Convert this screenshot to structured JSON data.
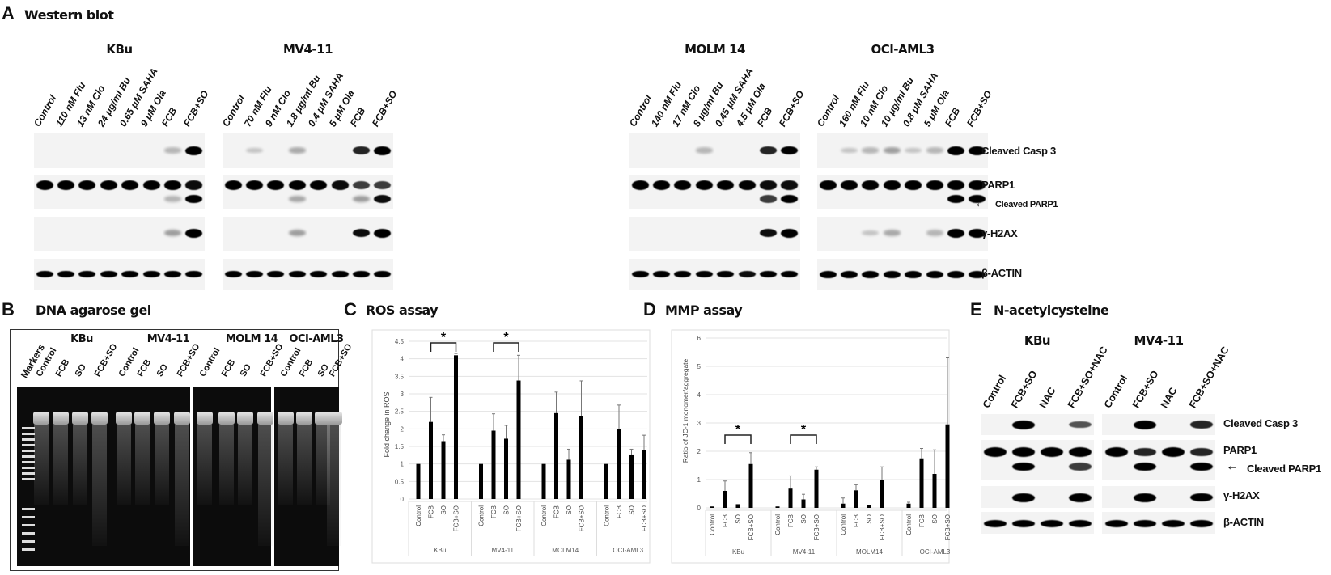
{
  "panelA": {
    "label": "A",
    "title": "Western blot",
    "blots": [
      {
        "cell": "KBu",
        "lanes": [
          "Control",
          "110 nM Flu",
          "13 nM Clo",
          "24 μg/ml Bu",
          "0.65 μM SAHA",
          "9 μM Ola",
          "FCB",
          "FCB+SO"
        ],
        "bands": {
          "casp3": [
            0,
            0,
            0,
            0,
            0,
            0,
            0.1,
            1
          ],
          "parp1": [
            1,
            1,
            1,
            1,
            1,
            1,
            0.9,
            0.8
          ],
          "cleaved_parp1": [
            0,
            0,
            0,
            0,
            0,
            0,
            0.1,
            0.9
          ],
          "h2ax": [
            0,
            0,
            0,
            0,
            0,
            0,
            0.2,
            1
          ],
          "actin": [
            0.9,
            0.9,
            0.9,
            0.9,
            0.9,
            0.9,
            0.9,
            0.9
          ]
        }
      },
      {
        "cell": "MV4-11",
        "lanes": [
          "Control",
          "70 nM Flu",
          "9 nM Clo",
          "1.8 μg/ml Bu",
          "0.4 μM SAHA",
          "5 μM Ola",
          "FCB",
          "FCB+SO"
        ],
        "bands": {
          "casp3": [
            0,
            0.05,
            0,
            0.15,
            0,
            0,
            0.7,
            1
          ],
          "parp1": [
            1,
            1,
            1,
            1,
            1,
            0.8,
            0.6,
            0.6
          ],
          "cleaved_parp1": [
            0,
            0,
            0,
            0.15,
            0,
            0,
            0.2,
            0.8
          ],
          "h2ax": [
            0,
            0,
            0,
            0.2,
            0,
            0,
            0.8,
            1
          ],
          "actin": [
            0.9,
            0.9,
            0.9,
            0.9,
            0.9,
            0.9,
            0.9,
            0.9
          ]
        }
      },
      {
        "cell": "MOLM 14",
        "lanes": [
          "Control",
          "140 nM Flu",
          "17 nM Clo",
          "8 μg/ml Bu",
          "0.45 μM SAHA",
          "4.5 μM Ola",
          "FCB",
          "FCB+SO"
        ],
        "bands": {
          "casp3": [
            0,
            0,
            0,
            0.1,
            0,
            0,
            0.7,
            0.9
          ],
          "parp1": [
            1,
            1,
            1,
            1,
            1,
            0.9,
            0.8,
            0.8
          ],
          "cleaved_parp1": [
            0,
            0,
            0,
            0,
            0,
            0,
            0.6,
            0.9
          ],
          "h2ax": [
            0,
            0,
            0,
            0,
            0,
            0,
            0.8,
            1
          ],
          "actin": [
            0.9,
            0.9,
            0.9,
            0.9,
            0.9,
            0.8,
            0.9,
            0.9
          ]
        }
      },
      {
        "cell": "OCI-AML3",
        "lanes": [
          "Control",
          "160 nM Flu",
          "10 nM Clo",
          "10 μg/ml Bu",
          "0.8 μM SAHA",
          "5 μM Ola",
          "FCB",
          "FCB+SO"
        ],
        "bands": {
          "casp3": [
            0,
            0.05,
            0.1,
            0.2,
            0.05,
            0.1,
            1,
            1
          ],
          "parp1": [
            0.9,
            0.9,
            0.9,
            0.9,
            0.9,
            0.9,
            0.9,
            0.9
          ],
          "cleaved_parp1": [
            0,
            0,
            0,
            0,
            0,
            0,
            0.85,
            0.9
          ],
          "h2ax": [
            0,
            0,
            0.05,
            0.15,
            0,
            0.1,
            1,
            1
          ],
          "actin": [
            1,
            1,
            1,
            1,
            1,
            1,
            1,
            1
          ]
        }
      }
    ],
    "row_labels": {
      "casp3": "Cleaved Casp 3",
      "parp1": "PARP1",
      "cleaved_parp1": "Cleaved PARP1",
      "h2ax": "γ-H2AX",
      "actin": "β-ACTIN"
    }
  },
  "panelB": {
    "label": "B",
    "title": "DNA agarose gel",
    "markers_label": "Markers",
    "groups": [
      {
        "cell": "KBu",
        "lanes": [
          "Control",
          "FCB",
          "SO",
          "FCB+SO"
        ]
      },
      {
        "cell": "MV4-11",
        "lanes": [
          "Control",
          "FCB",
          "SO",
          "FCB+SO"
        ]
      },
      {
        "cell": "MOLM 14",
        "lanes": [
          "Control",
          "FCB",
          "SO",
          "FCB+SO"
        ]
      },
      {
        "cell": "OCI-AML3",
        "lanes": [
          "Control",
          "FCB",
          "SO",
          "FCB+SO"
        ]
      }
    ]
  },
  "panelC": {
    "label": "C",
    "title": "ROS assay"
  },
  "panelD": {
    "label": "D",
    "title": "MMP assay"
  },
  "panelE": {
    "label": "E",
    "title": "N-acetylcysteine",
    "blots": [
      {
        "cell": "KBu",
        "lanes": [
          "Control",
          "FCB+SO",
          "NAC",
          "FCB+SO+NAC"
        ],
        "bands": {
          "casp3": [
            0,
            1,
            0,
            0.5
          ],
          "parp1": [
            1,
            1,
            1,
            1
          ],
          "cleaved_parp1": [
            0,
            0.9,
            0,
            0.6
          ],
          "h2ax": [
            0,
            1,
            0,
            1
          ],
          "actin": [
            1,
            1,
            1,
            1
          ]
        }
      },
      {
        "cell": "MV4-11",
        "lanes": [
          "Control",
          "FCB+SO",
          "NAC",
          "FCB+SO+NAC"
        ],
        "bands": {
          "casp3": [
            0,
            1,
            0,
            0.7
          ],
          "parp1": [
            1,
            0.7,
            1,
            0.7
          ],
          "cleaved_parp1": [
            0,
            0.9,
            0,
            0.9
          ],
          "h2ax": [
            0,
            1,
            0,
            0.9
          ],
          "actin": [
            1,
            1,
            1,
            1
          ]
        }
      }
    ],
    "row_labels": {
      "casp3": "Cleaved Casp 3",
      "parp1": "PARP1",
      "cleaved_parp1": "Cleaved PARP1",
      "h2ax": "γ-H2AX",
      "actin": "β-ACTIN"
    }
  },
  "chart_data": [
    {
      "type": "bar",
      "title": "ROS assay",
      "ylabel": "Fold change in ROS",
      "ylim": [
        0,
        4.5
      ],
      "yticks": [
        0,
        0.5,
        1,
        1.5,
        2,
        2.5,
        3,
        3.5,
        4,
        4.5
      ],
      "grid": true,
      "groups": [
        "KBu",
        "MV4-11",
        "MOLM14",
        "OCI-AML3"
      ],
      "categories": [
        "Control",
        "FCB",
        "SO",
        "FCB+SO"
      ],
      "values": [
        [
          1,
          2.2,
          1.65,
          4.1
        ],
        [
          1,
          1.95,
          1.72,
          3.38
        ],
        [
          1,
          2.45,
          1.12,
          2.37
        ],
        [
          1,
          2.0,
          1.27,
          1.4
        ]
      ],
      "errors": [
        [
          0,
          0.7,
          0.18,
          0.05
        ],
        [
          0,
          0.48,
          0.38,
          0.72
        ],
        [
          0,
          0.6,
          0.3,
          1.0
        ],
        [
          0,
          0.68,
          0.15,
          0.42
        ]
      ],
      "significance": [
        {
          "group": "KBu",
          "from": "FCB",
          "to": "FCB+SO",
          "mark": "*"
        },
        {
          "group": "MV4-11",
          "from": "FCB",
          "to": "FCB+SO",
          "mark": "*"
        }
      ],
      "bar_color": "#000000"
    },
    {
      "type": "bar",
      "title": "MMP assay",
      "ylabel": "Ratio of JC-1 monomer/aggregate",
      "ylim": [
        0,
        6
      ],
      "yticks": [
        0,
        1,
        2,
        3,
        4,
        5,
        6
      ],
      "grid": true,
      "groups": [
        "KBu",
        "MV4-11",
        "MOLM14",
        "OCI-AML3"
      ],
      "categories": [
        "Control",
        "FCB",
        "SO",
        "FCB+SO"
      ],
      "values": [
        [
          0.05,
          0.6,
          0.13,
          1.55
        ],
        [
          0.05,
          0.68,
          0.3,
          1.35
        ],
        [
          0.15,
          0.62,
          0.1,
          1.0
        ],
        [
          0.15,
          1.75,
          1.2,
          2.95
        ]
      ],
      "errors": [
        [
          0,
          0.35,
          0,
          0.4
        ],
        [
          0,
          0.45,
          0.18,
          0.1
        ],
        [
          0.2,
          0.2,
          0,
          0.45
        ],
        [
          0.05,
          0.35,
          0.85,
          2.35
        ]
      ],
      "significance": [
        {
          "group": "KBu",
          "from": "FCB",
          "to": "FCB+SO",
          "mark": "*"
        },
        {
          "group": "MV4-11",
          "from": "FCB",
          "to": "FCB+SO",
          "mark": "*"
        }
      ],
      "bar_color": "#000000"
    }
  ]
}
